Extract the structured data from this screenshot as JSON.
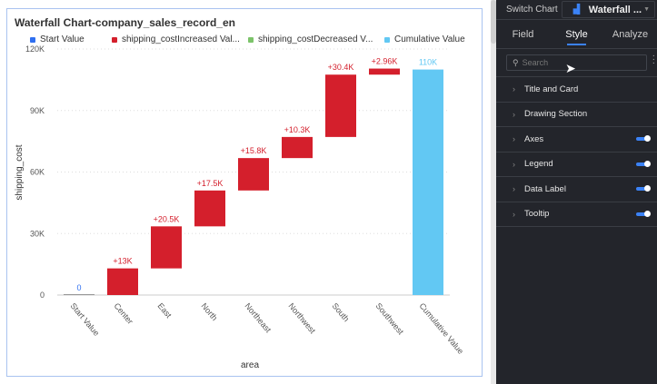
{
  "chart_card": {
    "title": "Waterfall Chart-company_sales_record_en",
    "legend": [
      {
        "label": "Start Value",
        "color": "#2f6ff0"
      },
      {
        "label": "shipping_costIncreased Val...",
        "color": "#d41f2c"
      },
      {
        "label": "shipping_costDecreased V...",
        "color": "#7cc36a"
      },
      {
        "label": "Cumulative Value",
        "color": "#62c8f3"
      }
    ]
  },
  "chart_data": {
    "type": "bar",
    "subtype": "waterfall",
    "categories": [
      "Start Value",
      "Center",
      "East",
      "North",
      "Northeast",
      "Northwest",
      "South",
      "Southwest",
      "Cumulative Value"
    ],
    "values": [
      0,
      13000,
      20500,
      17500,
      15800,
      10300,
      30400,
      2960,
      110000
    ],
    "data_labels": [
      "0",
      "+13K",
      "+20.5K",
      "+17.5K",
      "+15.8K",
      "+10.3K",
      "+30.4K",
      "+2.96K",
      "110K"
    ],
    "kinds": [
      "start",
      "increase",
      "increase",
      "increase",
      "increase",
      "increase",
      "increase",
      "increase",
      "cumulative"
    ],
    "xlabel": "area",
    "ylabel": "shipping_cost",
    "ylim": [
      0,
      120000
    ],
    "yticks": [
      "0",
      "30K",
      "60K",
      "90K",
      "120K"
    ],
    "grid": true,
    "legend_position": "top"
  },
  "panel": {
    "switch_chart_label": "Switch Chart",
    "chart_type": "Waterfall ...",
    "tabs": [
      "Field",
      "Style",
      "Analyze"
    ],
    "active_tab": "Style",
    "search_placeholder": "Search",
    "sections": [
      {
        "label": "Title and Card",
        "toggle": false
      },
      {
        "label": "Drawing Section",
        "toggle": false
      },
      {
        "label": "Axes",
        "toggle": true
      },
      {
        "label": "Legend",
        "toggle": true
      },
      {
        "label": "Data Label",
        "toggle": true
      },
      {
        "label": "Tooltip",
        "toggle": true
      }
    ]
  }
}
